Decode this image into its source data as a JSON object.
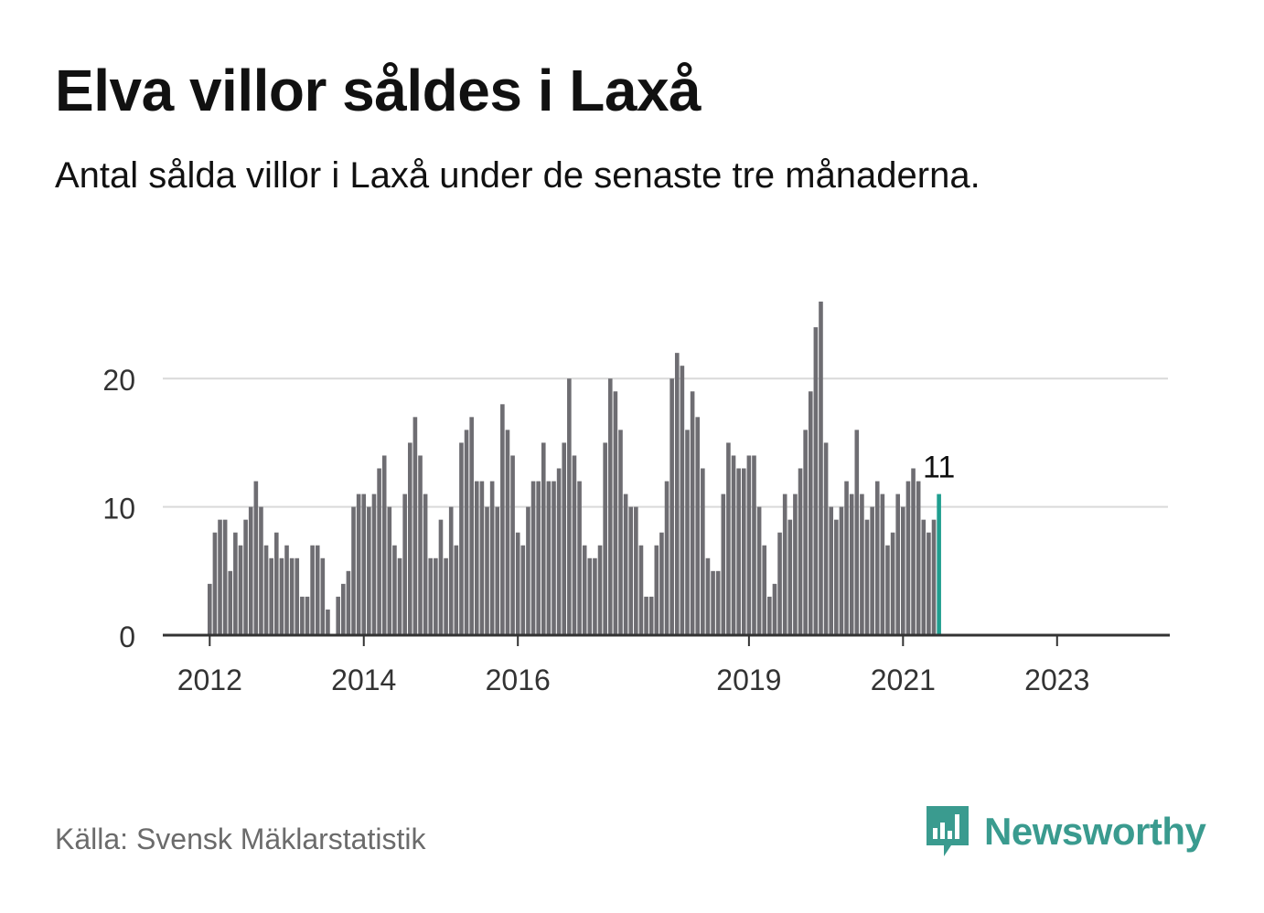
{
  "header": {
    "title": "Elva villor såldes i Laxå",
    "subtitle": "Antal sålda villor i Laxå under de senaste tre månaderna."
  },
  "footer": {
    "source": "Källa: Svensk Mäklarstatistik",
    "brand": "Newsworthy"
  },
  "colors": {
    "bar": "#6e6d72",
    "highlight": "#1f9e8f",
    "grid": "#d9d9d9",
    "axis": "#333333",
    "brand": "#3a9b8f"
  },
  "chart_data": {
    "type": "bar",
    "y_ticks": [
      0,
      10,
      20
    ],
    "ylim": [
      0,
      26
    ],
    "grid": true,
    "x_tick_labels": [
      {
        "label": "2012",
        "index": 0
      },
      {
        "label": "2014",
        "index": 30
      },
      {
        "label": "2016",
        "index": 60
      },
      {
        "label": "2019",
        "index": 105
      },
      {
        "label": "2021",
        "index": 135
      },
      {
        "label": "2023",
        "index": 165
      }
    ],
    "values": [
      4,
      8,
      9,
      9,
      5,
      8,
      7,
      9,
      10,
      12,
      10,
      7,
      6,
      8,
      6,
      7,
      6,
      6,
      3,
      3,
      7,
      7,
      6,
      2,
      0,
      3,
      4,
      5,
      10,
      11,
      11,
      10,
      11,
      13,
      14,
      10,
      7,
      6,
      11,
      15,
      17,
      14,
      11,
      6,
      6,
      9,
      6,
      10,
      7,
      15,
      16,
      17,
      12,
      12,
      10,
      12,
      10,
      18,
      16,
      14,
      8,
      7,
      10,
      12,
      12,
      15,
      12,
      12,
      13,
      15,
      20,
      14,
      12,
      7,
      6,
      6,
      7,
      15,
      20,
      19,
      16,
      11,
      10,
      10,
      7,
      3,
      3,
      7,
      8,
      12,
      20,
      22,
      21,
      16,
      19,
      17,
      13,
      6,
      5,
      5,
      11,
      15,
      14,
      13,
      13,
      14,
      14,
      10,
      7,
      3,
      4,
      8,
      11,
      9,
      11,
      13,
      16,
      19,
      24,
      26,
      15,
      10,
      9,
      10,
      12,
      11,
      16,
      11,
      9,
      10,
      12,
      11,
      7,
      8,
      11,
      10,
      12,
      13,
      12,
      9,
      8,
      9,
      11
    ],
    "highlight_label": "11"
  }
}
